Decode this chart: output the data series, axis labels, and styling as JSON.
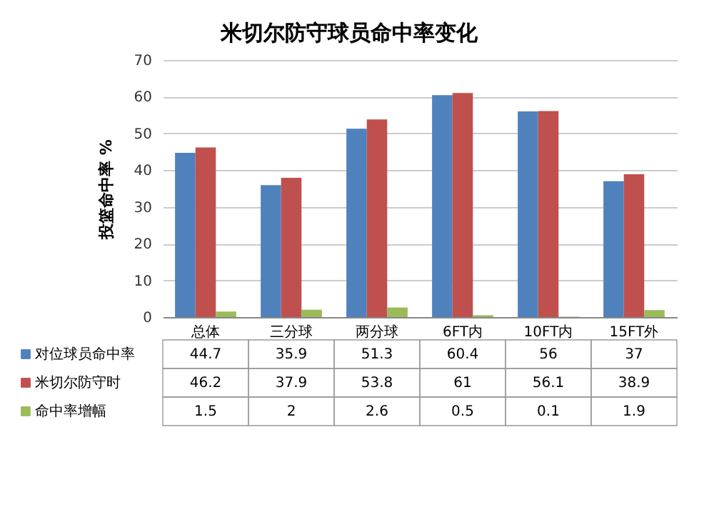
{
  "chart_data": {
    "type": "bar",
    "title": "米切尔防守球员命中率变化",
    "ylabel": "投篮命中率 %",
    "categories": [
      "总体",
      "三分球",
      "两分球",
      "6FT内",
      "10FT内",
      "15FT外"
    ],
    "series": [
      {
        "name": "对位球员命中率",
        "color": "#4f81bd",
        "values": [
          44.7,
          35.9,
          51.3,
          60.4,
          56,
          37
        ]
      },
      {
        "name": "米切尔防守时",
        "color": "#c0504d",
        "values": [
          46.2,
          37.9,
          53.8,
          61,
          56.1,
          38.9
        ]
      },
      {
        "name": "命中率增幅",
        "color": "#9bbb59",
        "values": [
          1.5,
          2,
          2.6,
          0.5,
          0.1,
          1.9
        ]
      }
    ],
    "ylim": [
      0,
      70
    ],
    "yticks": [
      0,
      10,
      20,
      30,
      40,
      50,
      60,
      70
    ],
    "grid": "y",
    "data_labels": true,
    "legend": "bottom"
  }
}
